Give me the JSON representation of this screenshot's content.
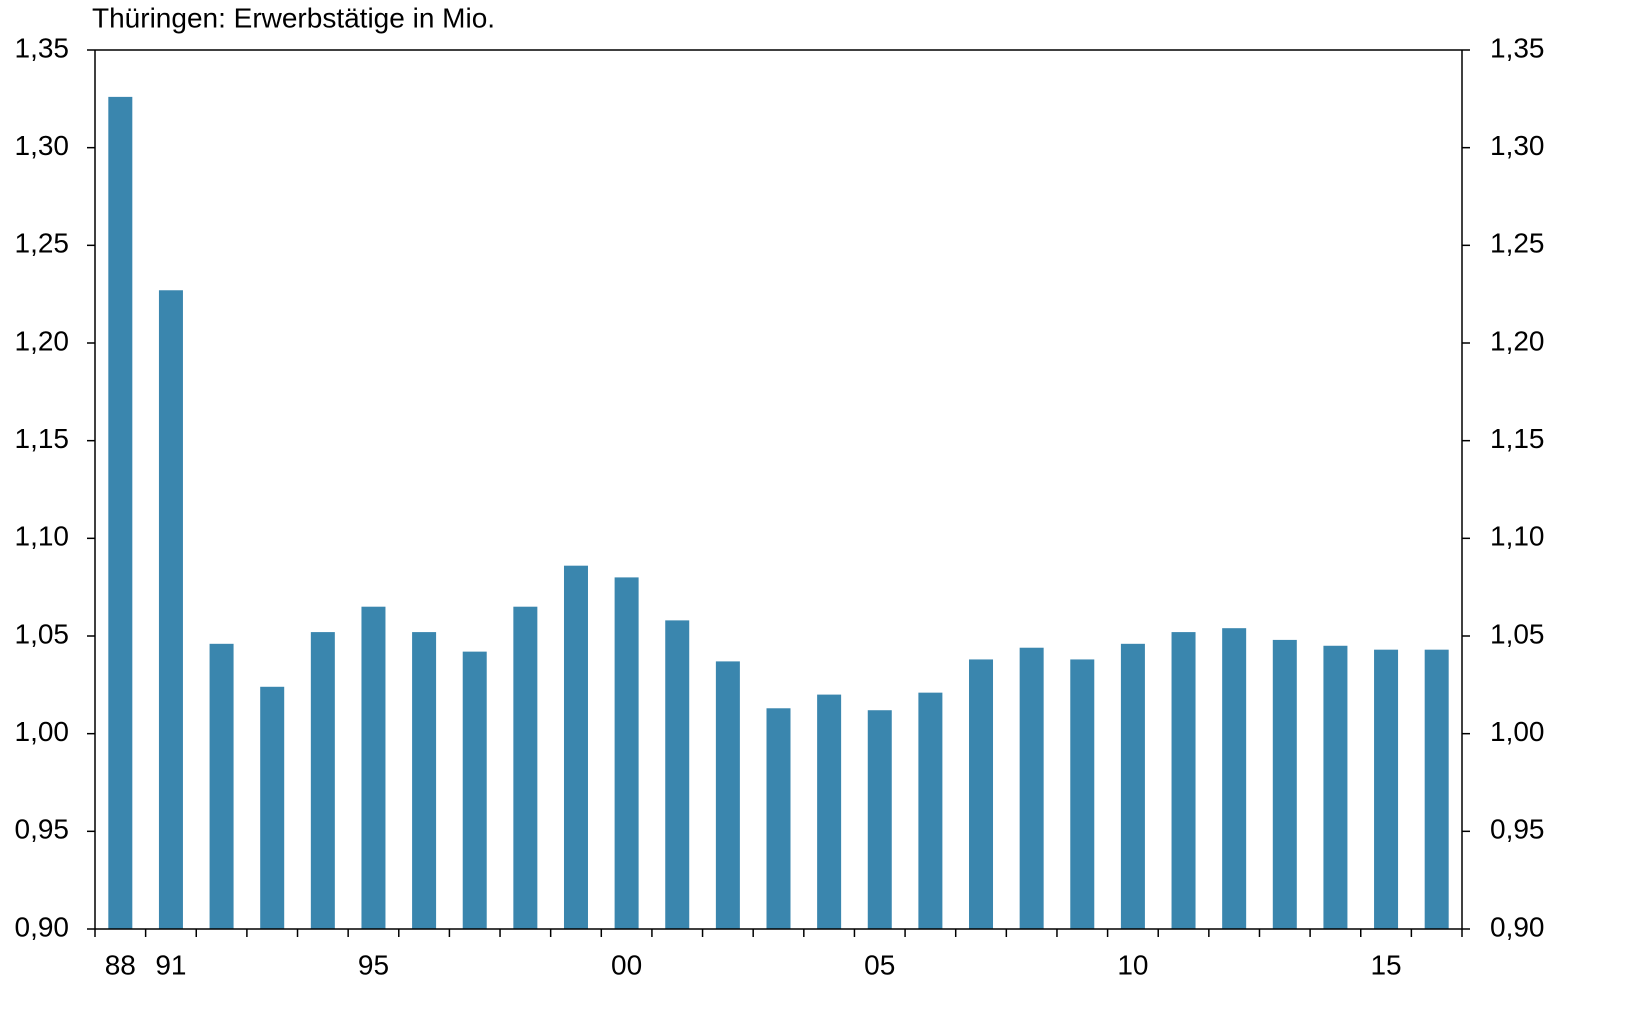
{
  "chart_data": {
    "type": "bar",
    "title": "Thüringen: Erwerbstätige in Mio.",
    "categories": [
      "88",
      "91",
      null,
      null,
      null,
      "95",
      null,
      null,
      null,
      null,
      "00",
      null,
      null,
      null,
      null,
      "05",
      null,
      null,
      null,
      null,
      "10",
      null,
      null,
      null,
      null,
      "15",
      null
    ],
    "values": [
      1.326,
      1.227,
      1.046,
      1.024,
      1.052,
      1.065,
      1.052,
      1.042,
      1.065,
      1.086,
      1.08,
      1.058,
      1.037,
      1.013,
      1.02,
      1.012,
      1.021,
      1.038,
      1.044,
      1.038,
      1.046,
      1.052,
      1.054,
      1.048,
      1.045,
      1.043,
      1.043
    ],
    "color": "#3a86ae",
    "ylim": [
      0.9,
      1.35
    ],
    "yticks": [
      {
        "value": 0.9,
        "label": "0,90"
      },
      {
        "value": 0.95,
        "label": "0,95"
      },
      {
        "value": 1.0,
        "label": "1,00"
      },
      {
        "value": 1.05,
        "label": "1,05"
      },
      {
        "value": 1.1,
        "label": "1,10"
      },
      {
        "value": 1.15,
        "label": "1,15"
      },
      {
        "value": 1.2,
        "label": "1,20"
      },
      {
        "value": 1.25,
        "label": "1,25"
      },
      {
        "value": 1.3,
        "label": "1,30"
      },
      {
        "value": 1.35,
        "label": "1,35"
      }
    ],
    "grid": false
  }
}
